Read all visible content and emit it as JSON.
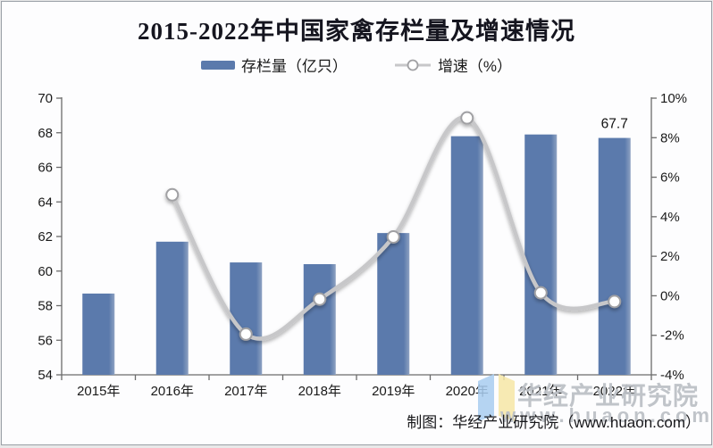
{
  "title": "2015-2022年中国家禽存栏量及增速情况",
  "legend": {
    "items": [
      {
        "label": "存栏量（亿只）",
        "marker": "bar-swatch"
      },
      {
        "label": "增速（%）",
        "marker": "line-marker"
      }
    ]
  },
  "chart_data": {
    "type": "bar+line",
    "categories": [
      "2015年",
      "2016年",
      "2017年",
      "2018年",
      "2019年",
      "2020年",
      "2021年",
      "2022年"
    ],
    "series": [
      {
        "name": "存栏量（亿只）",
        "type": "bar",
        "axis": "left",
        "values": [
          58.7,
          61.7,
          60.5,
          60.4,
          62.2,
          67.8,
          67.9,
          67.7
        ]
      },
      {
        "name": "增速（%）",
        "type": "line",
        "axis": "right",
        "values": [
          null,
          5.11,
          -1.94,
          -0.17,
          2.98,
          9.0,
          0.15,
          -0.29
        ]
      }
    ],
    "left_axis": {
      "min": 54,
      "max": 70,
      "tick_values": [
        70,
        68,
        66,
        64,
        62,
        60,
        58,
        56,
        54
      ],
      "tick_labels": [
        "70",
        "68",
        "66",
        "64",
        "62",
        "60",
        "58",
        "56",
        "54"
      ]
    },
    "right_axis": {
      "min": -4,
      "max": 10,
      "tick_values": [
        10,
        8,
        6,
        4,
        2,
        0,
        -2,
        -4
      ],
      "tick_labels": [
        "10%",
        "8%",
        "6%",
        "4%",
        "2%",
        "0%",
        "-2%",
        "-4%"
      ]
    },
    "annotations": [
      {
        "text": "67.7",
        "category_index": 7,
        "value": 67.7,
        "axis": "left"
      }
    ],
    "grid": false,
    "legend_position": "top"
  },
  "footer": {
    "credit": "制图：华经产业研究院（www.huaon.com）"
  },
  "watermark": {
    "name": "华经产业研究院",
    "url": "www.huaon.com"
  },
  "colors": {
    "bar": "#5b7aac",
    "bar_edge": "#8ea2c2",
    "line": "#c7c7c9",
    "marker_fill": "#ffffff",
    "marker_stroke": "#a0a0a3",
    "axis": "#6b6b6b",
    "label": "#1a1a1a",
    "title": "#15151f",
    "watermark_text": "#bdc1c7",
    "logo_blue": "#a9cdf0",
    "logo_yellow": "#f6e7a6"
  }
}
